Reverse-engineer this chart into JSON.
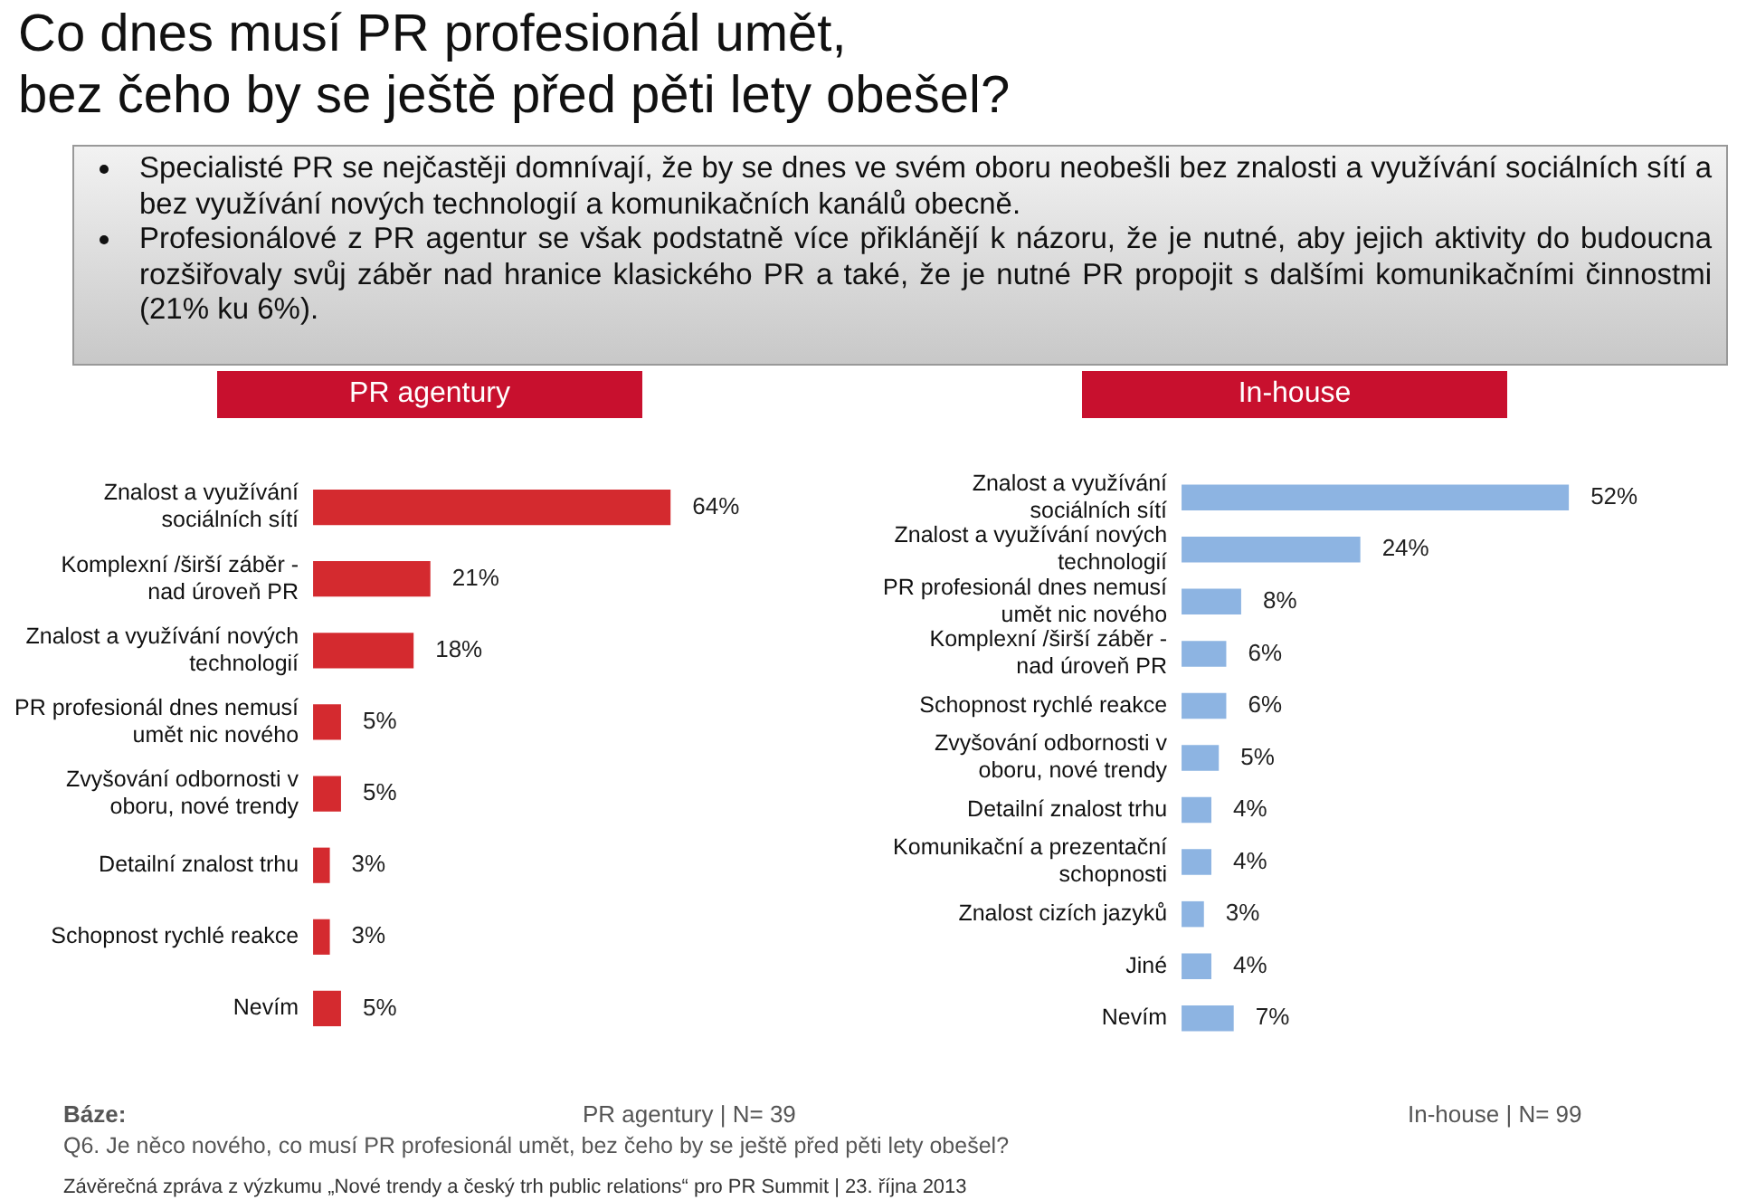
{
  "chart_data": [
    {
      "type": "bar",
      "orientation": "horizontal",
      "title": "PR agentury",
      "categories": [
        "Znalost a využívání sociálních sítí",
        "Komplexní /širší záběr - nad úroveň PR",
        "Znalost a využívání nových technologií",
        "PR profesionál dnes nemusí umět nic nového",
        "Zvyšování odbornosti v oboru, nové trendy",
        "Detailní znalost trhu",
        "Schopnost rychlé reakce",
        "Nevím"
      ],
      "values": [
        64,
        21,
        18,
        5,
        5,
        3,
        3,
        5
      ],
      "color": "#d42a2f",
      "value_labels": [
        "64%",
        "21%",
        "18%",
        "5%",
        "5%",
        "3%",
        "3%",
        "5%"
      ],
      "grid": false,
      "legend": false,
      "tick_labels": "y",
      "annotations": [
        "Co dnes musí PR profesionál umět,\nbez čeho by se ještě před pěti lety obešel?",
        "Specialisté PR se nejčastěji domnívají, že by se dnes ve svém oboru neobešli bez znalosti a využívání sociálních sítí a bez využívání nových technologií a komunikačních kanálů obecně.",
        "Profesionálové z PR agentur se však podstatně více přiklánějí k názoru, že je nutné, aby jejich aktivity do budoucna rozšiřovaly svůj záběr nad hranice klasického PR a také, že je nutné PR propojit s dalšími komunikačními činnostmi (21% ku 6%).",
        "Báze:",
        "PR agentury | N= 39",
        "Q6.  Je něco nového, co musí PR profesionál umět, bez čeho by se ještě před pěti lety obešel?",
        "Závěrečná zpráva z výzkumu „Nové trendy a český trh public relations“ pro PR Summit | 23. října 2013"
      ]
    },
    {
      "type": "bar",
      "orientation": "horizontal",
      "title": "In-house",
      "categories": [
        "Znalost a využívání sociálních sítí",
        "Znalost a využívání nových technologií",
        "PR profesionál dnes nemusí umět nic nového",
        "Komplexní /širší záběr - nad úroveň PR",
        "Schopnost rychlé reakce",
        "Zvyšování odbornosti v oboru, nové trendy",
        "Detailní znalost trhu",
        "Komunikační a prezentační schopnosti",
        "Znalost cizích jazyků",
        "Jiné",
        "Nevím"
      ],
      "values": [
        52,
        24,
        8,
        6,
        6,
        5,
        4,
        4,
        3,
        4,
        7
      ],
      "color": "#8db4e2",
      "value_labels": [
        "52%",
        "24%",
        "8%",
        "6%",
        "6%",
        "5%",
        "4%",
        "4%",
        "3%",
        "4%",
        "7%"
      ],
      "grid": false,
      "legend": false,
      "tick_labels": "y",
      "annotations": [
        "In-house | N= 99"
      ]
    }
  ]
}
